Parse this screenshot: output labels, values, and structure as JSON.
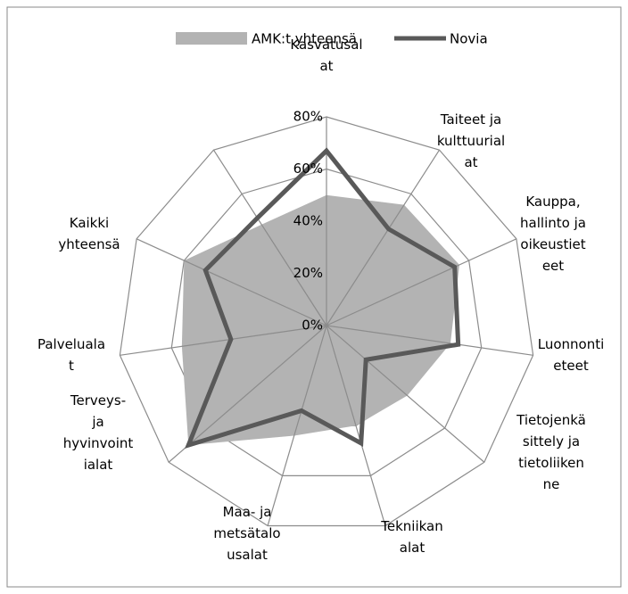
{
  "chart_data": {
    "type": "radar",
    "categories": [
      "Kasvatusal\nat",
      "Taiteet ja\nkulttuurial\nat",
      "Kauppa,\nhallinto ja\noikeustiet\neet",
      "Luonnonti\neteet",
      "Tietojenkä\nsittely ja\ntietoliiken\nne",
      "Tekniikan\nalat",
      "Maa- ja\nmetsätalo\nusalat",
      "Terveys-\nja\nhyvinvoint\nialat",
      "Palveluala\nt",
      "Kaikki\nyhteensä",
      null
    ],
    "series": [
      {
        "name": "AMK:t yhteensä",
        "color": "#b3b3b3",
        "values": [
          50,
          55,
          56,
          48,
          41,
          40,
          44,
          70,
          56,
          60,
          46
        ]
      },
      {
        "name": "Novia",
        "color": "#595959",
        "values": [
          67,
          44,
          54,
          51,
          20,
          47,
          34,
          70,
          37,
          51,
          49
        ]
      }
    ],
    "ylim": [
      0,
      80
    ],
    "yticks": [
      {
        "value": 0,
        "label": "0%"
      },
      {
        "value": 20,
        "label": "20%"
      },
      {
        "value": 40,
        "label": "40%"
      },
      {
        "value": 60,
        "label": "60%"
      },
      {
        "value": 80,
        "label": "80%"
      }
    ],
    "legend": "top"
  }
}
